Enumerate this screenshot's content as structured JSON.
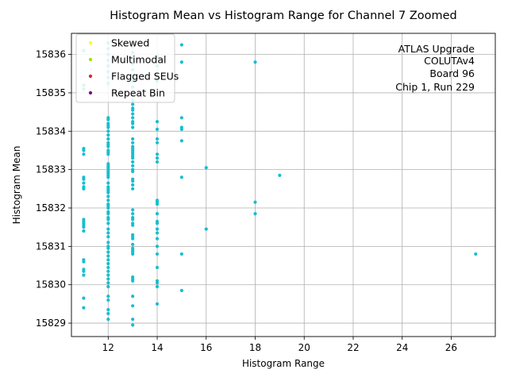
{
  "chart_data": {
    "type": "scatter",
    "title": "Histogram Mean vs Histogram Range for Channel 7 Zoomed",
    "xlabel": "Histogram Range",
    "ylabel": "Histogram Mean",
    "xlim": [
      10.5,
      27.8
    ],
    "ylim": [
      15828.65,
      15836.55
    ],
    "xticks": [
      12,
      14,
      16,
      18,
      20,
      22,
      24,
      26
    ],
    "yticks": [
      15829,
      15830,
      15831,
      15832,
      15833,
      15834,
      15835,
      15836
    ],
    "grid": true,
    "legend_position": "top-left",
    "legend": [
      {
        "label": "Skewed",
        "color": "#ffff00"
      },
      {
        "label": "Multimodal",
        "color": "#99e600"
      },
      {
        "label": "Flagged SEUs",
        "color": "#e0203a"
      },
      {
        "label": "Repeat Bin",
        "color": "#800080"
      }
    ],
    "annotation": [
      "ATLAS Upgrade",
      "COLUTAv4",
      "Board 96",
      "Chip 1, Run 229"
    ],
    "series": [
      {
        "color": "#17becf",
        "points": [
          [
            11,
            15836.1
          ],
          [
            11,
            15835.2
          ],
          [
            11,
            15835.1
          ],
          [
            11,
            15833.55
          ],
          [
            11,
            15833.5
          ],
          [
            11,
            15833.4
          ],
          [
            11,
            15832.8
          ],
          [
            11,
            15832.75
          ],
          [
            11,
            15832.65
          ],
          [
            11,
            15832.55
          ],
          [
            11,
            15832.5
          ],
          [
            11,
            15831.7
          ],
          [
            11,
            15831.65
          ],
          [
            11,
            15831.6
          ],
          [
            11,
            15831.55
          ],
          [
            11,
            15831.5
          ],
          [
            11,
            15831.4
          ],
          [
            11,
            15830.65
          ],
          [
            11,
            15830.6
          ],
          [
            11,
            15830.4
          ],
          [
            11,
            15830.35
          ],
          [
            11,
            15830.25
          ],
          [
            11,
            15829.65
          ],
          [
            11,
            15829.4
          ],
          [
            12,
            15836.3
          ],
          [
            12,
            15836.15
          ],
          [
            12,
            15836.0
          ],
          [
            12,
            15835.85
          ],
          [
            12,
            15835.7
          ],
          [
            12,
            15835.55
          ],
          [
            12,
            15835.4
          ],
          [
            12,
            15835.25
          ],
          [
            12,
            15834.35
          ],
          [
            12,
            15834.3
          ],
          [
            12,
            15834.2
          ],
          [
            12,
            15834.15
          ],
          [
            12,
            15834.1
          ],
          [
            12,
            15834.0
          ],
          [
            12,
            15833.9
          ],
          [
            12,
            15833.8
          ],
          [
            12,
            15833.7
          ],
          [
            12,
            15833.65
          ],
          [
            12,
            15833.6
          ],
          [
            12,
            15833.5
          ],
          [
            12,
            15833.45
          ],
          [
            12,
            15833.4
          ],
          [
            12,
            15833.15
          ],
          [
            12,
            15833.1
          ],
          [
            12,
            15833.05
          ],
          [
            12,
            15833.0
          ],
          [
            12,
            15832.95
          ],
          [
            12,
            15832.9
          ],
          [
            12,
            15832.85
          ],
          [
            12,
            15832.8
          ],
          [
            12,
            15832.65
          ],
          [
            12,
            15832.55
          ],
          [
            12,
            15832.5
          ],
          [
            12,
            15832.45
          ],
          [
            12,
            15832.4
          ],
          [
            12,
            15832.3
          ],
          [
            12,
            15832.2
          ],
          [
            12,
            15832.1
          ],
          [
            12,
            15832.05
          ],
          [
            12,
            15832.0
          ],
          [
            12,
            15831.9
          ],
          [
            12,
            15831.85
          ],
          [
            12,
            15831.75
          ],
          [
            12,
            15831.7
          ],
          [
            12,
            15831.6
          ],
          [
            12,
            15831.45
          ],
          [
            12,
            15831.35
          ],
          [
            12,
            15831.25
          ],
          [
            12,
            15831.1
          ],
          [
            12,
            15831.0
          ],
          [
            12,
            15830.95
          ],
          [
            12,
            15830.85
          ],
          [
            12,
            15830.75
          ],
          [
            12,
            15830.65
          ],
          [
            12,
            15830.55
          ],
          [
            12,
            15830.45
          ],
          [
            12,
            15830.35
          ],
          [
            12,
            15830.25
          ],
          [
            12,
            15830.15
          ],
          [
            12,
            15830.05
          ],
          [
            12,
            15829.95
          ],
          [
            12,
            15829.7
          ],
          [
            12,
            15829.6
          ],
          [
            12,
            15829.35
          ],
          [
            12,
            15829.25
          ],
          [
            12,
            15829.1
          ],
          [
            13,
            15836.2
          ],
          [
            13,
            15836.05
          ],
          [
            13,
            15835.9
          ],
          [
            13,
            15835.75
          ],
          [
            13,
            15835.6
          ],
          [
            13,
            15835.45
          ],
          [
            13,
            15835.3
          ],
          [
            13,
            15835.15
          ],
          [
            13,
            15834.95
          ],
          [
            13,
            15834.8
          ],
          [
            13,
            15834.7
          ],
          [
            13,
            15834.6
          ],
          [
            13,
            15834.55
          ],
          [
            13,
            15834.45
          ],
          [
            13,
            15834.35
          ],
          [
            13,
            15834.25
          ],
          [
            13,
            15834.2
          ],
          [
            13,
            15834.1
          ],
          [
            13,
            15833.8
          ],
          [
            13,
            15833.7
          ],
          [
            13,
            15833.6
          ],
          [
            13,
            15833.55
          ],
          [
            13,
            15833.5
          ],
          [
            13,
            15833.45
          ],
          [
            13,
            15833.4
          ],
          [
            13,
            15833.35
          ],
          [
            13,
            15833.3
          ],
          [
            13,
            15833.2
          ],
          [
            13,
            15833.1
          ],
          [
            13,
            15833.0
          ],
          [
            13,
            15832.95
          ],
          [
            13,
            15832.75
          ],
          [
            13,
            15832.7
          ],
          [
            13,
            15832.6
          ],
          [
            13,
            15832.5
          ],
          [
            13,
            15831.95
          ],
          [
            13,
            15831.85
          ],
          [
            13,
            15831.75
          ],
          [
            13,
            15831.7
          ],
          [
            13,
            15831.6
          ],
          [
            13,
            15831.55
          ],
          [
            13,
            15831.3
          ],
          [
            13,
            15831.25
          ],
          [
            13,
            15831.2
          ],
          [
            13,
            15831.05
          ],
          [
            13,
            15830.95
          ],
          [
            13,
            15830.9
          ],
          [
            13,
            15830.85
          ],
          [
            13,
            15830.8
          ],
          [
            13,
            15830.2
          ],
          [
            13,
            15830.15
          ],
          [
            13,
            15830.1
          ],
          [
            13,
            15829.7
          ],
          [
            13,
            15829.45
          ],
          [
            13,
            15829.1
          ],
          [
            13,
            15828.95
          ],
          [
            14,
            15835.95
          ],
          [
            14,
            15835.7
          ],
          [
            14,
            15835.45
          ],
          [
            14,
            15835.3
          ],
          [
            14,
            15834.25
          ],
          [
            14,
            15834.05
          ],
          [
            14,
            15833.8
          ],
          [
            14,
            15833.7
          ],
          [
            14,
            15833.4
          ],
          [
            14,
            15833.3
          ],
          [
            14,
            15833.2
          ],
          [
            14,
            15832.2
          ],
          [
            14,
            15832.15
          ],
          [
            14,
            15832.1
          ],
          [
            14,
            15831.85
          ],
          [
            14,
            15831.65
          ],
          [
            14,
            15831.6
          ],
          [
            14,
            15831.45
          ],
          [
            14,
            15831.35
          ],
          [
            14,
            15831.2
          ],
          [
            14,
            15831.0
          ],
          [
            14,
            15830.8
          ],
          [
            14,
            15830.45
          ],
          [
            14,
            15830.1
          ],
          [
            14,
            15830.05
          ],
          [
            14,
            15829.95
          ],
          [
            14,
            15829.5
          ],
          [
            15,
            15836.25
          ],
          [
            15,
            15835.8
          ],
          [
            15,
            15834.35
          ],
          [
            15,
            15834.1
          ],
          [
            15,
            15834.05
          ],
          [
            15,
            15833.75
          ],
          [
            15,
            15832.8
          ],
          [
            15,
            15830.8
          ],
          [
            15,
            15829.85
          ],
          [
            16,
            15833.05
          ],
          [
            16,
            15831.45
          ],
          [
            18,
            15835.8
          ],
          [
            18,
            15832.15
          ],
          [
            18,
            15831.85
          ],
          [
            19,
            15832.85
          ],
          [
            27,
            15830.8
          ]
        ]
      }
    ]
  }
}
